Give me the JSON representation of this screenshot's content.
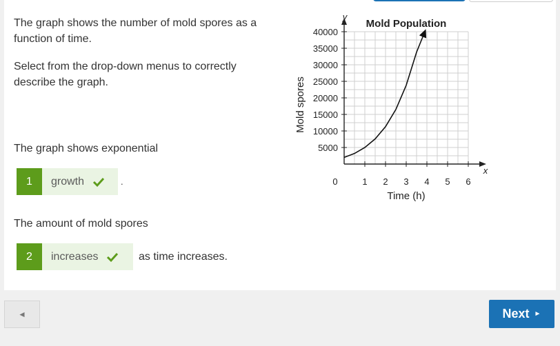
{
  "question": {
    "intro": "The graph shows the number of mold spores as a function of time.",
    "instruction": "Select from the drop-down menus to correctly describe the graph."
  },
  "part1": {
    "prompt": "The graph shows exponential",
    "number": "1",
    "selected": "growth",
    "after": "."
  },
  "part2": {
    "prompt": "The amount of mold spores",
    "number": "2",
    "selected": "increases",
    "after": "as time increases."
  },
  "nav": {
    "back_label": "◄",
    "next_label": "Next",
    "next_arrow": "►"
  },
  "colors": {
    "accent_green": "#5d9c1b",
    "selected_bg": "#eaf4e3",
    "next_blue": "#1b72b5"
  },
  "chart_data": {
    "type": "line",
    "title": "Mold Population",
    "xlabel": "Time (h)",
    "ylabel": "Mold spores",
    "x_axis_letter": "x",
    "y_axis_letter": "y",
    "origin_label": "0",
    "xlim": [
      0,
      6
    ],
    "ylim": [
      0,
      40000
    ],
    "x_ticks": [
      1,
      2,
      3,
      4,
      5,
      6
    ],
    "y_ticks": [
      5000,
      10000,
      15000,
      20000,
      25000,
      30000,
      35000,
      40000
    ],
    "grid": true,
    "series": [
      {
        "x": [
          0,
          0.5,
          1,
          1.5,
          2,
          2.5,
          3,
          3.5,
          3.9
        ],
        "y": [
          2000,
          3200,
          5000,
          7600,
          11300,
          16500,
          23800,
          33800,
          40000
        ]
      }
    ]
  }
}
